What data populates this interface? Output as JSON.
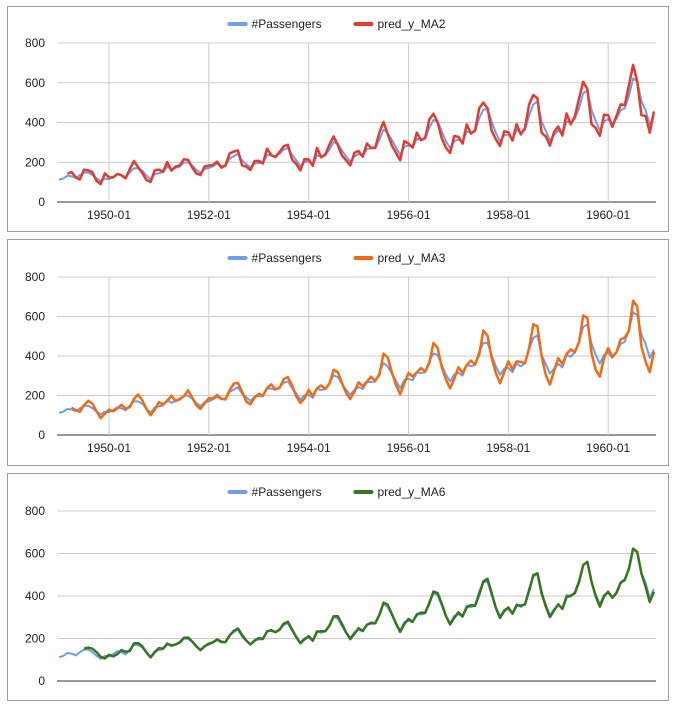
{
  "chart_data": [
    {
      "type": "line",
      "title": "",
      "xlabel": "",
      "ylabel": "",
      "ylim": [
        0,
        800
      ],
      "yticks": [
        "0",
        "200",
        "400",
        "600",
        "800"
      ],
      "x_tick_labels": [
        "1950-01",
        "1952-01",
        "1954-01",
        "1956-01",
        "1958-01",
        "1960-01"
      ],
      "x_tick_index": [
        12,
        36,
        60,
        84,
        108,
        132
      ],
      "x_start": "1949-01",
      "legend": "top-center",
      "series": [
        {
          "name": "#Passengers",
          "color": "#6d9eeb"
        },
        {
          "name": "pred_y_MA2",
          "color": "#e53b2f"
        }
      ],
      "predicted_series": "pred_y_MA2",
      "start_index": 2
    },
    {
      "type": "line",
      "title": "",
      "xlabel": "",
      "ylabel": "",
      "ylim": [
        0,
        800
      ],
      "yticks": [
        "0",
        "200",
        "400",
        "600",
        "800"
      ],
      "x_tick_labels": [
        "1950-01",
        "1952-01",
        "1954-01",
        "1956-01",
        "1958-01",
        "1960-01"
      ],
      "x_tick_index": [
        12,
        36,
        60,
        84,
        108,
        132
      ],
      "x_start": "1949-01",
      "legend": "top-center",
      "series": [
        {
          "name": "#Passengers",
          "color": "#6d9eeb"
        },
        {
          "name": "pred_y_MA3",
          "color": "#f26b12"
        }
      ],
      "predicted_series": "pred_y_MA3",
      "start_index": 3
    },
    {
      "type": "line",
      "title": "",
      "xlabel": "",
      "ylabel": "",
      "ylim": [
        0,
        800
      ],
      "yticks": [
        "0",
        "200",
        "400",
        "600",
        "800"
      ],
      "x_tick_labels": [],
      "x_tick_index": [],
      "x_start": "1949-01",
      "legend": "top-center",
      "series": [
        {
          "name": "#Passengers",
          "color": "#6d9eeb"
        },
        {
          "name": "pred_y_MA6",
          "color": "#38761d"
        }
      ],
      "predicted_series": "pred_y_MA6",
      "start_index": 6
    }
  ],
  "passengers": [
    112,
    118,
    132,
    129,
    121,
    135,
    148,
    148,
    136,
    119,
    104,
    118,
    115,
    126,
    141,
    135,
    125,
    149,
    170,
    170,
    158,
    133,
    114,
    140,
    145,
    150,
    178,
    163,
    172,
    178,
    199,
    199,
    184,
    162,
    146,
    166,
    171,
    180,
    193,
    181,
    183,
    218,
    230,
    242,
    209,
    191,
    172,
    194,
    196,
    196,
    236,
    235,
    229,
    243,
    264,
    272,
    237,
    211,
    180,
    201,
    204,
    188,
    235,
    227,
    234,
    264,
    302,
    293,
    259,
    229,
    203,
    229,
    242,
    233,
    267,
    269,
    270,
    315,
    364,
    347,
    312,
    274,
    237,
    278,
    284,
    277,
    317,
    313,
    318,
    374,
    413,
    405,
    355,
    306,
    271,
    306,
    315,
    301,
    356,
    348,
    355,
    422,
    465,
    467,
    404,
    347,
    305,
    336,
    340,
    318,
    362,
    348,
    363,
    435,
    491,
    505,
    404,
    359,
    310,
    337,
    360,
    342,
    406,
    396,
    420,
    472,
    548,
    559,
    463,
    407,
    362,
    405,
    417,
    391,
    419,
    461,
    472,
    535,
    622,
    606,
    508,
    461,
    390,
    432
  ],
  "predictions": {
    "pred_y_MA2": [
      null,
      null,
      142,
      151,
      124,
      113,
      163,
      159,
      150,
      106,
      90,
      144,
      124,
      124,
      141,
      134,
      119,
      166,
      206,
      175,
      146,
      111,
      101,
      160,
      163,
      152,
      201,
      158,
      178,
      184,
      215,
      212,
      174,
      143,
      136,
      179,
      183,
      187,
      203,
      173,
      184,
      244,
      254,
      259,
      184,
      178,
      161,
      206,
      207,
      194,
      268,
      236,
      226,
      251,
      281,
      288,
      214,
      192,
      159,
      216,
      214,
      182,
      272,
      225,
      239,
      289,
      330,
      288,
      234,
      210,
      184,
      247,
      257,
      228,
      294,
      273,
      273,
      350,
      403,
      342,
      284,
      247,
      210,
      307,
      294,
      274,
      349,
      311,
      322,
      415,
      444,
      402,
      320,
      273,
      247,
      332,
      328,
      294,
      391,
      344,
      359,
      472,
      500,
      472,
      358,
      315,
      282,
      355,
      352,
      309,
      392,
      340,
      372,
      491,
      538,
      522,
      348,
      330,
      284,
      353,
      380,
      334,
      446,
      390,
      432,
      521,
      604,
      569,
      392,
      373,
      333,
      439,
      437,
      378,
      433,
      491,
      488,
      588,
      690,
      606,
      437,
      433,
      349,
      456
    ]
  },
  "predictions_alt": {
    "pred_y_MA3": [
      null,
      null,
      null,
      138,
      126,
      117,
      151,
      173,
      160,
      120,
      85,
      108,
      128,
      120,
      134,
      153,
      133,
      141,
      182,
      205,
      176,
      132,
      100,
      128,
      166,
      155,
      172,
      199,
      172,
      183,
      196,
      226,
      190,
      151,
      132,
      161,
      186,
      185,
      203,
      184,
      180,
      226,
      260,
      264,
      219,
      170,
      155,
      189,
      209,
      199,
      238,
      256,
      232,
      238,
      283,
      293,
      253,
      197,
      162,
      185,
      228,
      197,
      236,
      251,
      233,
      260,
      330,
      319,
      263,
      213,
      182,
      219,
      267,
      247,
      270,
      295,
      275,
      306,
      412,
      393,
      317,
      253,
      206,
      262,
      314,
      296,
      317,
      339,
      321,
      364,
      466,
      442,
      343,
      281,
      236,
      284,
      343,
      314,
      354,
      377,
      357,
      408,
      529,
      503,
      390,
      314,
      262,
      316,
      373,
      333,
      373,
      370,
      363,
      440,
      561,
      550,
      400,
      304,
      255,
      324,
      389,
      359,
      410,
      433,
      420,
      470,
      605,
      593,
      415,
      330,
      296,
      388,
      440,
      397,
      419,
      484,
      493,
      528,
      680,
      650,
      448,
      371,
      318,
      420
    ]
  },
  "predictions_alt6": {
    "pred_y_MA6": [
      null,
      null,
      null,
      null,
      null,
      null,
      152,
      157,
      152,
      136,
      114,
      106,
      123,
      116,
      126,
      146,
      137,
      141,
      177,
      178,
      163,
      135,
      111,
      135,
      155,
      152,
      175,
      168,
      172,
      182,
      203,
      205,
      186,
      163,
      145,
      163,
      176,
      182,
      196,
      185,
      183,
      214,
      236,
      247,
      217,
      190,
      172,
      189,
      202,
      198,
      233,
      239,
      230,
      241,
      270,
      279,
      243,
      207,
      178,
      196,
      211,
      190,
      232,
      234,
      234,
      260,
      305,
      305,
      269,
      228,
      197,
      222,
      248,
      236,
      264,
      274,
      272,
      310,
      369,
      359,
      315,
      270,
      231,
      268,
      292,
      279,
      312,
      322,
      321,
      365,
      421,
      414,
      364,
      306,
      266,
      297,
      323,
      305,
      346,
      357,
      354,
      406,
      469,
      481,
      413,
      344,
      297,
      328,
      346,
      317,
      356,
      355,
      360,
      425,
      498,
      507,
      416,
      351,
      301,
      332,
      361,
      339,
      395,
      402,
      413,
      466,
      545,
      561,
      468,
      399,
      350,
      398,
      420,
      392,
      414,
      463,
      477,
      528,
      623,
      607,
      506,
      445,
      372,
      420
    ]
  }
}
